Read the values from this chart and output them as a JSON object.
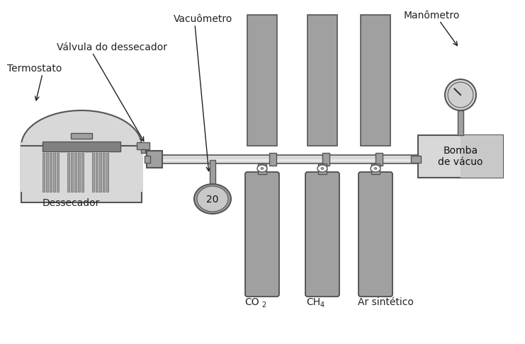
{
  "title": "",
  "bg_color": "#ffffff",
  "gray_dark": "#808080",
  "gray_mid": "#a0a0a0",
  "gray_light": "#c8c8c8",
  "gray_lighter": "#d8d8d8",
  "gray_box": "#b0b0b0",
  "gray_pipe": "#c0c0c0",
  "line_color": "#555555",
  "text_color": "#222222",
  "labels": {
    "termostato": "Termostato",
    "valvula": "Válvula do dessecador",
    "vacuometro": "Vacuômetro",
    "manometro": "Manômetro",
    "dessecador": "Dessecador",
    "bomba": "Bomba\nde vácuo",
    "co2": "CO",
    "ch4": "CH",
    "ar": "Ar sintético",
    "co2_sub": "2",
    "ch4_sub": "4"
  }
}
